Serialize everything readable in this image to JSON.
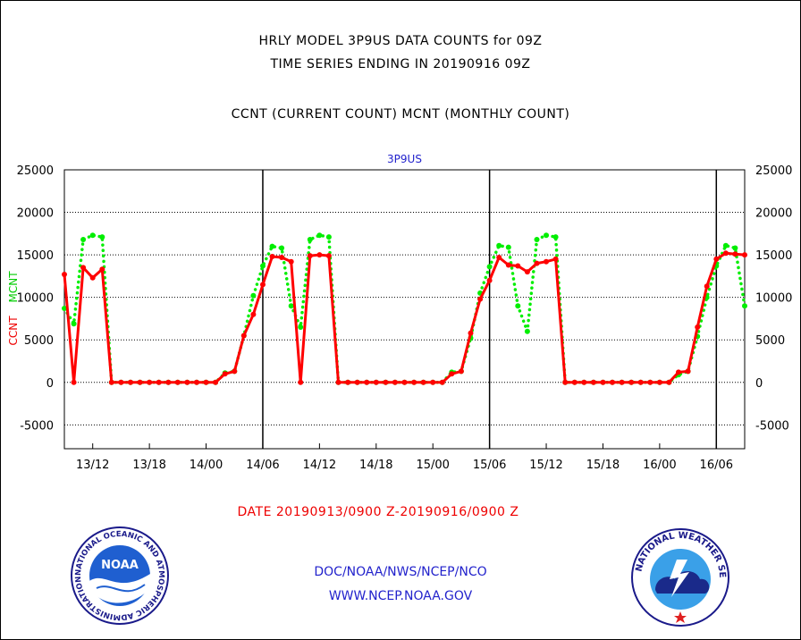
{
  "header": {
    "title_line1": "HRLY MODEL 3P9US DATA COUNTS for 09Z",
    "title_line2": "TIME SERIES ENDING IN 20190916 09Z",
    "title_line3": "CCNT (CURRENT COUNT) MCNT (MONTHLY COUNT)"
  },
  "chart_data": {
    "type": "line",
    "title": "3P9US",
    "ylabel_left_1": "CCNT",
    "ylabel_left_2": "MCNT",
    "ylim": [
      -7800,
      25000
    ],
    "yticks": [
      25000,
      20000,
      15000,
      10000,
      5000,
      0,
      -5000
    ],
    "ytick_labels": [
      "25000",
      "20000",
      "15000",
      "10000",
      "5000",
      "0",
      "-5000"
    ],
    "xlim": [
      0,
      72
    ],
    "xticks": [
      3,
      9,
      15,
      21,
      27,
      33,
      39,
      45,
      51,
      57,
      63,
      69
    ],
    "xtick_labels": [
      "13/12",
      "13/18",
      "14/00",
      "14/06",
      "14/12",
      "14/18",
      "15/00",
      "15/06",
      "15/12",
      "15/18",
      "16/00",
      "16/06"
    ],
    "day_lines": [
      21,
      45,
      69
    ],
    "grid": true,
    "series": [
      {
        "name": "CCNT",
        "color": "#ff0000",
        "style": "solid",
        "values": [
          12700,
          0,
          13500,
          12300,
          13300,
          0,
          0,
          0,
          0,
          0,
          0,
          0,
          0,
          0,
          0,
          0,
          0,
          1000,
          1300,
          5500,
          8000,
          11500,
          14800,
          14700,
          14200,
          0,
          14900,
          15000,
          14900,
          0,
          0,
          0,
          0,
          0,
          0,
          0,
          0,
          0,
          0,
          0,
          0,
          1000,
          1300,
          5800,
          9800,
          12000,
          14700,
          13800,
          13700,
          13000,
          14000,
          14200,
          14500,
          0,
          0,
          0,
          0,
          0,
          0,
          0,
          0,
          0,
          0,
          0,
          0,
          1200,
          1300,
          6500,
          11300,
          14500,
          15200,
          15100,
          15000
        ]
      },
      {
        "name": "MCNT",
        "color": "#00ee00",
        "style": "dotted",
        "values": [
          8700,
          6900,
          16800,
          17300,
          17100,
          0,
          0,
          0,
          0,
          0,
          0,
          0,
          0,
          0,
          0,
          0,
          0,
          1100,
          1300,
          5500,
          10200,
          13700,
          16000,
          15800,
          9000,
          6500,
          16800,
          17300,
          17100,
          0,
          0,
          0,
          0,
          0,
          0,
          0,
          0,
          0,
          0,
          0,
          0,
          1200,
          1300,
          5200,
          10500,
          13600,
          16100,
          15900,
          9000,
          6000,
          16800,
          17300,
          17100,
          0,
          0,
          0,
          0,
          0,
          0,
          0,
          0,
          0,
          0,
          0,
          0,
          900,
          1300,
          5400,
          10000,
          13700,
          16100,
          15800,
          9000
        ]
      }
    ]
  },
  "footer": {
    "date_range": "DATE 20190913/0900 Z-20190916/0900 Z",
    "org_line": "DOC/NOAA/NWS/NCEP/NCO",
    "url_line": "WWW.NCEP.NOAA.GOV"
  },
  "logos": {
    "noaa_text": "NOAA",
    "noaa_ring": "NATIONAL OCEANIC AND ATMOSPHERIC ADMINISTRATION · U.S. DEPARTMENT OF COMMERCE ·",
    "nws_ring": "NATIONAL WEATHER SERVICE"
  }
}
